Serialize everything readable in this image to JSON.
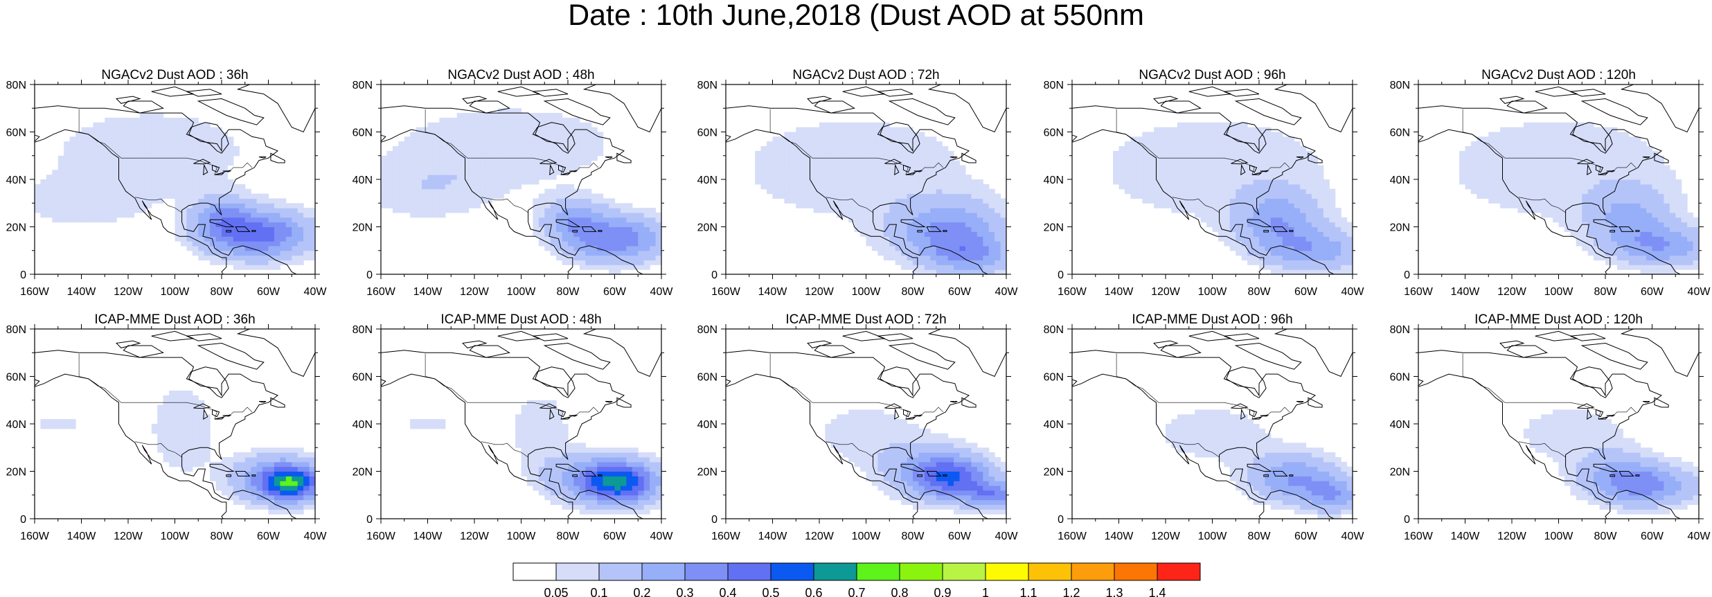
{
  "title": "Date : 10th June,2018 (Dust AOD at 550nm",
  "panels": [
    {
      "title": "NGACv2 Dust AOD : 36h",
      "blobs": [
        {
          "lon": -65,
          "lat": 17,
          "sx": 16,
          "sy": 7,
          "v": 0.45
        },
        {
          "lon": -80,
          "lat": 25,
          "sx": 8,
          "sy": 6,
          "v": 0.22
        },
        {
          "lon": -110,
          "lat": 52,
          "sx": 34,
          "sy": 14,
          "v": 0.09
        },
        {
          "lon": -140,
          "lat": 30,
          "sx": 20,
          "sy": 8,
          "v": 0.08
        }
      ]
    },
    {
      "title": "NGACv2 Dust AOD : 48h",
      "blobs": [
        {
          "lon": -60,
          "lat": 15,
          "sx": 15,
          "sy": 7,
          "v": 0.38
        },
        {
          "lon": -78,
          "lat": 24,
          "sx": 9,
          "sy": 6,
          "v": 0.22
        },
        {
          "lon": -105,
          "lat": 55,
          "sx": 38,
          "sy": 13,
          "v": 0.09
        },
        {
          "lon": -140,
          "lat": 35,
          "sx": 22,
          "sy": 10,
          "v": 0.08
        }
      ]
    },
    {
      "title": "NGACv2 Dust AOD : 72h",
      "blobs": [
        {
          "lon": -65,
          "lat": 18,
          "sx": 16,
          "sy": 9,
          "v": 0.3
        },
        {
          "lon": -55,
          "lat": 8,
          "sx": 12,
          "sy": 6,
          "v": 0.22
        },
        {
          "lon": -105,
          "lat": 45,
          "sx": 45,
          "sy": 20,
          "v": 0.08
        }
      ]
    },
    {
      "title": "NGACv2 Dust AOD : 96h",
      "blobs": [
        {
          "lon": -72,
          "lat": 22,
          "sx": 12,
          "sy": 9,
          "v": 0.26
        },
        {
          "lon": -55,
          "lat": 10,
          "sx": 14,
          "sy": 6,
          "v": 0.24
        },
        {
          "lon": -100,
          "lat": 45,
          "sx": 45,
          "sy": 20,
          "v": 0.08
        }
      ]
    },
    {
      "title": "NGACv2 Dust AOD : 120h",
      "blobs": [
        {
          "lon": -55,
          "lat": 12,
          "sx": 14,
          "sy": 6,
          "v": 0.26
        },
        {
          "lon": -70,
          "lat": 24,
          "sx": 12,
          "sy": 9,
          "v": 0.2
        },
        {
          "lon": -100,
          "lat": 45,
          "sx": 45,
          "sy": 20,
          "v": 0.08
        }
      ]
    },
    {
      "title": "ICAP-MME Dust AOD : 36h",
      "blobs": [
        {
          "lon": -50,
          "lat": 15,
          "sx": 9,
          "sy": 5,
          "v": 0.5
        },
        {
          "lon": -58,
          "lat": 17,
          "sx": 13,
          "sy": 7,
          "v": 0.28
        },
        {
          "lon": -97,
          "lat": 38,
          "sx": 10,
          "sy": 14,
          "v": 0.1
        },
        {
          "lon": -150,
          "lat": 40,
          "sx": 10,
          "sy": 3,
          "v": 0.07
        }
      ]
    },
    {
      "title": "ICAP-MME Dust AOD : 48h",
      "blobs": [
        {
          "lon": -57,
          "lat": 15,
          "sx": 11,
          "sy": 6,
          "v": 0.45
        },
        {
          "lon": -68,
          "lat": 17,
          "sx": 15,
          "sy": 7,
          "v": 0.26
        },
        {
          "lon": -92,
          "lat": 38,
          "sx": 10,
          "sy": 12,
          "v": 0.09
        },
        {
          "lon": -140,
          "lat": 40,
          "sx": 10,
          "sy": 3,
          "v": 0.07
        }
      ]
    },
    {
      "title": "ICAP-MME Dust AOD : 72h",
      "blobs": [
        {
          "lon": -62,
          "lat": 17,
          "sx": 11,
          "sy": 6,
          "v": 0.35
        },
        {
          "lon": -45,
          "lat": 10,
          "sx": 8,
          "sy": 4,
          "v": 0.32
        },
        {
          "lon": -72,
          "lat": 20,
          "sx": 14,
          "sy": 8,
          "v": 0.24
        },
        {
          "lon": -100,
          "lat": 36,
          "sx": 18,
          "sy": 10,
          "v": 0.08
        }
      ]
    },
    {
      "title": "ICAP-MME Dust AOD : 96h",
      "blobs": [
        {
          "lon": -65,
          "lat": 17,
          "sx": 13,
          "sy": 7,
          "v": 0.3
        },
        {
          "lon": -48,
          "lat": 10,
          "sx": 8,
          "sy": 5,
          "v": 0.25
        },
        {
          "lon": -100,
          "lat": 36,
          "sx": 22,
          "sy": 10,
          "v": 0.08
        }
      ]
    },
    {
      "title": "ICAP-MME Dust AOD : 120h",
      "blobs": [
        {
          "lon": -60,
          "lat": 14,
          "sx": 14,
          "sy": 6,
          "v": 0.28
        },
        {
          "lon": -75,
          "lat": 18,
          "sx": 12,
          "sy": 7,
          "v": 0.2
        },
        {
          "lon": -95,
          "lat": 36,
          "sx": 20,
          "sy": 10,
          "v": 0.08
        }
      ]
    }
  ],
  "lon_ticks": [
    "160W",
    "140W",
    "120W",
    "100W",
    "80W",
    "60W",
    "40W"
  ],
  "lat_ticks": [
    "0",
    "20N",
    "40N",
    "60N",
    "80N"
  ],
  "domain": {
    "lon": [
      -160,
      -40
    ],
    "lat": [
      0,
      80
    ]
  },
  "colorbar": {
    "colors": [
      "#ffffff",
      "#d5ddf9",
      "#b5c4f8",
      "#97aef8",
      "#7e90f5",
      "#6270f3",
      "#0b59f1",
      "#0d9995",
      "#5df31b",
      "#8bf40f",
      "#b9f344",
      "#fcfb01",
      "#fdc205",
      "#fd9d0b",
      "#fb7604",
      "#fd2518"
    ],
    "labels": [
      "0.05",
      "0.1",
      "0.2",
      "0.3",
      "0.4",
      "0.5",
      "0.6",
      "0.7",
      "0.8",
      "0.9",
      "1",
      "1.1",
      "1.2",
      "1.3",
      "1.4"
    ]
  }
}
